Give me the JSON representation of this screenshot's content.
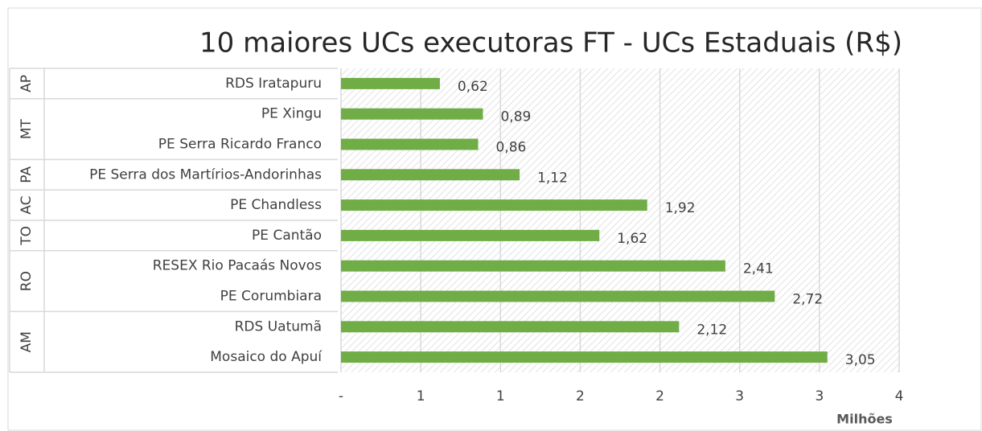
{
  "chart_data": {
    "type": "bar",
    "orientation": "horizontal",
    "title": "10 maiores UCs executoras FT - UCs Estaduais (R$)",
    "x_axis_title": "Milhões",
    "color": "#70ad47",
    "groups": [
      {
        "label": "AP",
        "categories": [
          "RDS Iratapuru"
        ],
        "values": [
          0.62
        ],
        "value_labels": [
          "0,62"
        ]
      },
      {
        "label": "MT",
        "categories": [
          "PE Xingu",
          "PE Serra Ricardo Franco"
        ],
        "values": [
          0.89,
          0.86
        ],
        "value_labels": [
          "0,89",
          "0,86"
        ]
      },
      {
        "label": "PA",
        "categories": [
          "PE Serra dos Martírios-Andorinhas"
        ],
        "values": [
          1.12
        ],
        "value_labels": [
          "1,12"
        ]
      },
      {
        "label": "AC",
        "categories": [
          "PE Chandless"
        ],
        "values": [
          1.92
        ],
        "value_labels": [
          "1,92"
        ]
      },
      {
        "label": "TO",
        "categories": [
          "PE Cantão"
        ],
        "values": [
          1.62
        ],
        "value_labels": [
          "1,62"
        ]
      },
      {
        "label": "RO",
        "categories": [
          "RESEX Rio Pacaás Novos",
          "PE Corumbiara"
        ],
        "values": [
          2.41,
          2.72
        ],
        "value_labels": [
          "2,41",
          "2,72"
        ]
      },
      {
        "label": "AM",
        "categories": [
          "RDS Uatumã",
          "Mosaico do Apuí"
        ],
        "values": [
          2.12,
          3.05
        ],
        "value_labels": [
          "2,12",
          "3,05"
        ]
      }
    ],
    "xlim": [
      0,
      3.5
    ],
    "xticks": [
      {
        "value": 0,
        "label": "-"
      },
      {
        "value": 0.5,
        "label": "1"
      },
      {
        "value": 1,
        "label": "1"
      },
      {
        "value": 1.5,
        "label": "2"
      },
      {
        "value": 2,
        "label": "2"
      },
      {
        "value": 2.5,
        "label": "3"
      },
      {
        "value": 3,
        "label": "3"
      },
      {
        "value": 3.5,
        "label": "4"
      }
    ],
    "grid": true
  }
}
